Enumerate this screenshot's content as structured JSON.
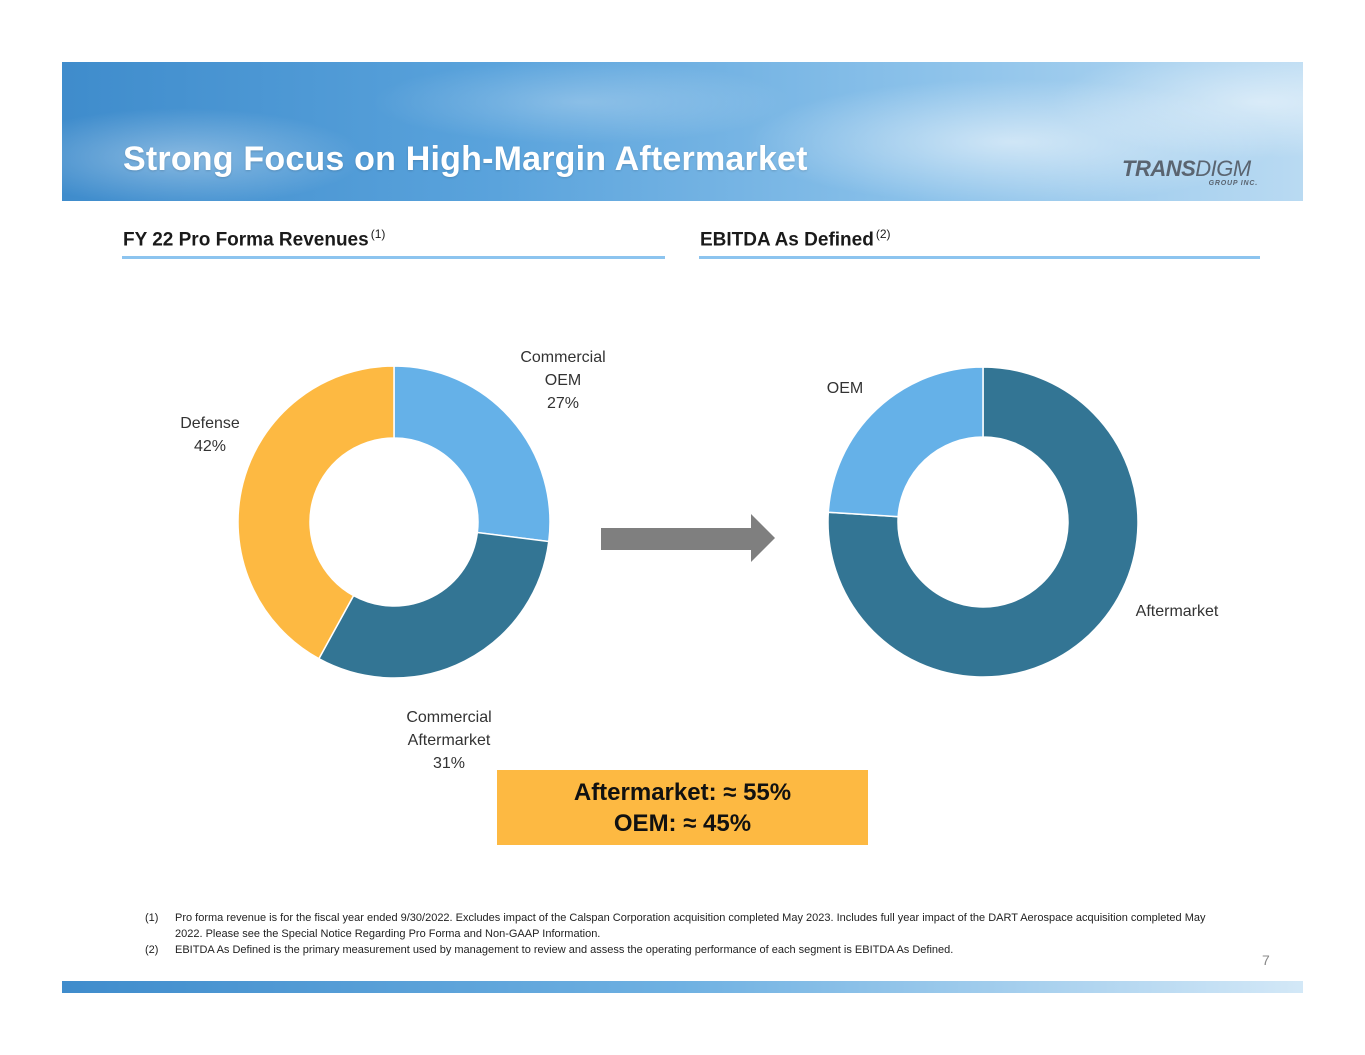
{
  "title": "Strong Focus on High-Margin Aftermarket",
  "logo": {
    "main_bold": "TRANS",
    "main_light": "DIGM",
    "sub": "GROUP INC."
  },
  "left_section": {
    "heading": "FY 22 Pro Forma Revenues",
    "footnote_ref": "(1)"
  },
  "right_section": {
    "heading": "EBITDA As Defined",
    "footnote_ref": "(2)"
  },
  "chart_data": [
    {
      "type": "pie",
      "title": "FY 22 Pro Forma Revenues",
      "categories": [
        "Commercial OEM",
        "Commercial Aftermarket",
        "Defense"
      ],
      "values": [
        27,
        31,
        42
      ],
      "colors": [
        "#65b1e8",
        "#337594",
        "#fdb942"
      ],
      "labels": [
        [
          "Commercial",
          "OEM",
          "27%"
        ],
        [
          "Commercial",
          "Aftermarket",
          "31%"
        ],
        [
          "Defense",
          "42%"
        ]
      ]
    },
    {
      "type": "pie",
      "title": "EBITDA As Defined",
      "categories": [
        "Aftermarket",
        "OEM"
      ],
      "values": [
        76,
        24
      ],
      "colors": [
        "#337594",
        "#65b1e8"
      ],
      "labels": [
        [
          "Aftermarket"
        ],
        [
          "OEM"
        ]
      ]
    }
  ],
  "callout": {
    "line1": "Aftermarket: ≈ 55%",
    "line2": "OEM: ≈ 45%"
  },
  "footnotes": [
    {
      "num": "(1)",
      "text": "Pro forma revenue is for the fiscal year ended 9/30/2022. Excludes impact of the Calspan Corporation acquisition completed May 2023. Includes full year impact of the DART Aerospace acquisition completed May 2022. Please see the Special Notice Regarding Pro Forma and Non-GAAP Information."
    },
    {
      "num": "(2)",
      "text": "EBITDA As Defined is the primary measurement used by management to review and assess the operating performance of each segment is EBITDA As Defined."
    }
  ],
  "page_number": "7",
  "colors": {
    "accent": "#fdb942",
    "rule": "#8cc4ef",
    "arrow": "#7f7f7f"
  }
}
